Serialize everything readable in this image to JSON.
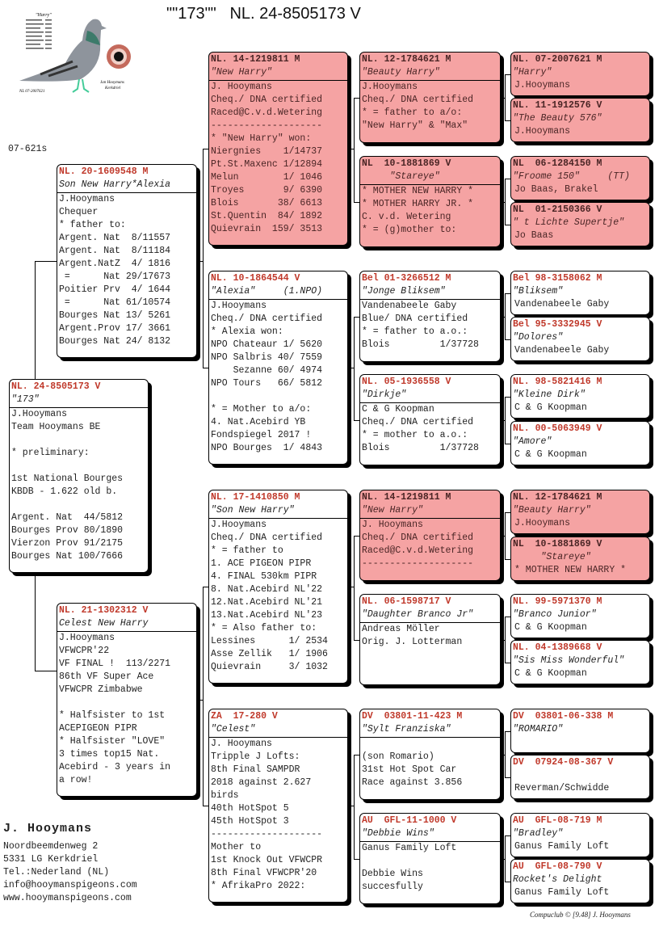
{
  "title": "\"\"173\"\"   NL. 24-8505173 V",
  "code": "07-621s",
  "logo_text": {
    "top": "\"Harry\"",
    "left": "NL 07-2007621",
    "right1": "Jan Hooymans",
    "right2": "Kerkdriel"
  },
  "colors": {
    "pink": "#f5a3a3",
    "id_red": "#c0392b"
  },
  "boxes": [
    {
      "id": "NL. 24-8505173 V",
      "name": "\"173\"",
      "pink": false,
      "lines": [
        "J.Hooymans",
        "Team Hooymans BE",
        "",
        "* preliminary:",
        "",
        "1st National Bourges",
        "KBDB - 1.622 old b.",
        "",
        "Argent. Nat  44/5812",
        "Bourges Prov 80/1890",
        "Vierzon Prov 91/2175",
        "Bourges Nat 100/7666"
      ]
    },
    {
      "id": "NL. 20-1609548 M",
      "name": "Son New Harry*Alexia",
      "pink": false,
      "lines": [
        "J.Hooymans",
        "Chequer",
        "* father to:",
        "Argent. Nat  8/11557",
        "Argent. Nat  8/11184",
        "Argent.NatZ  4/ 1816",
        " =      Nat 29/17673",
        "Poitier Prv  4/ 1644",
        " =      Nat 61/10574",
        "Bourges Nat 13/ 5261",
        "Argent.Prov 17/ 3661",
        "Bourges Nat 24/ 8132"
      ]
    },
    {
      "id": "NL. 21-1302312 V",
      "name": "Celest New Harry",
      "pink": false,
      "lines": [
        "J.Hooymans",
        "VFWCPR'22",
        "VF FINAL !  113/2271",
        "86th VF Super Ace",
        "VFWCPR Zimbabwe",
        "",
        "* Halfsister to 1st",
        "ACEPIGEON PIPR",
        "* Halfsister \"LOVE\"",
        "3 times top15 Nat.",
        "Acebird - 3 years in",
        "a row!"
      ]
    },
    {
      "id": "NL. 14-1219811 M",
      "name": "\"New Harry\"",
      "pink": true,
      "lines": [
        "J. Hooymans",
        "Cheq./ DNA certified",
        "Raced@C.v.d.Wetering",
        "--------------------",
        "* \"New Harry\" won:",
        "Niergnies    1/14737",
        "Pt.St.Maxenc 1/12894",
        "Melun        1/ 1046",
        "Troyes       9/ 6390",
        "Blois       38/ 6613",
        "St.Quentin  84/ 1892",
        "Quievrain  159/ 3513"
      ]
    },
    {
      "id": "NL. 10-1864544 V",
      "name": "\"Alexia\"     (1.NPO)",
      "pink": false,
      "lines": [
        "J.Hooymans",
        "Cheq./ DNA certified",
        "* Alexia won:",
        "NPO Chateaur 1/ 5620",
        "NPO Salbris 40/ 7559",
        "    Sezanne 60/ 4974",
        "NPO Tours   66/ 5812",
        "",
        "* = Mother to a/o:",
        "4. Nat.Acebird YB",
        "Fondspiegel 2017 !",
        "NPO Bourges  1/ 4843"
      ]
    },
    {
      "id": "NL. 17-1410850 M",
      "name": "\"Son New Harry\"",
      "pink": false,
      "lines": [
        "J.Hooymans",
        "Cheq./ DNA certified",
        "* = father to",
        "1. ACE PIGEON PIPR",
        "4. FINAL 530km PIPR",
        "8. Nat.Acebird NL'22",
        "12.Nat.Acebird NL'21",
        "13.Nat.Acebird NL'23",
        "* = Also father to:",
        "Lessines      1/ 2534",
        "Asse Zellik   1/ 1906",
        "Quievrain     3/ 1032"
      ]
    },
    {
      "id": "ZA  17-280 V",
      "name": "\"Celest\"",
      "pink": false,
      "lines": [
        "J. Hooymans",
        "Tripple J Lofts:",
        "8th Final SAMPDR",
        "2018 against 2.627",
        "birds",
        "40th HotSpot 5",
        "45th HotSpot 3",
        "--------------------",
        "Mother to",
        "1st Knock Out VFWCPR",
        "8th Final VFWCPR'20",
        "* AfrikaPro 2022:"
      ]
    },
    {
      "id": "NL. 12-1784621 M",
      "name": "\"Beauty Harry\"",
      "pink": true,
      "lines": [
        "J.Hooymans",
        "Cheq./ DNA certified",
        "* = father to a/o:",
        "\"New Harry\" & \"Max\""
      ]
    },
    {
      "id": "NL  10-1881869 V",
      "name": "     \"Stareye\"",
      "pink": true,
      "lines": [
        "* MOTHER NEW HARRY *",
        "* MOTHER HARRY JR. *",
        "C. v.d. Wetering",
        "* = (g)mother to:"
      ]
    },
    {
      "id": "Bel 01-3266512 M",
      "name": "\"Jonge Bliksem\"",
      "pink": false,
      "lines": [
        "Vandenabeele Gaby",
        "Blue/ DNA certified",
        "* = father to a.o.:",
        "Blois         1/37728"
      ]
    },
    {
      "id": "NL. 05-1936558 V",
      "name": "\"Dirkje\"",
      "pink": false,
      "lines": [
        "C & G Koopman",
        "Cheq./ DNA certified",
        "* = mother to a.o.:",
        "Blois         1/37728"
      ]
    },
    {
      "id": "NL. 14-1219811 M",
      "name": "\"New Harry\"",
      "pink": true,
      "lines": [
        "J. Hooymans",
        "Cheq./ DNA certified",
        "Raced@C.v.d.Wetering",
        "--------------------"
      ]
    },
    {
      "id": "NL. 06-1598717 V",
      "name": "\"Daughter Branco Jr\"",
      "pink": false,
      "lines": [
        "Andreas Möller",
        "Orig. J. Lotterman"
      ]
    },
    {
      "id": "DV  03801-11-423 M",
      "name": "\"Sylt Franziska\"",
      "pink": false,
      "lines": [
        "",
        "(son Romario)",
        "31st Hot Spot Car",
        "Race against 3.856"
      ]
    },
    {
      "id": "AU  GFL-11-1000 V",
      "name": "\"Debbie Wins\"",
      "pink": false,
      "lines": [
        "Ganus Family Loft",
        "",
        "Debbie Wins",
        "succesfully"
      ]
    },
    {
      "id": "NL. 07-2007621 M",
      "name": "\"Harry\"",
      "pink": true,
      "lines": [
        "J.Hooymans"
      ]
    },
    {
      "id": "NL. 11-1912576 V",
      "name": "\"The Beauty 576\"",
      "pink": true,
      "lines": [
        "J.Hooymans"
      ]
    },
    {
      "id": "NL  06-1284150 M",
      "name": "\"Froome 150\"     (TT)",
      "pink": true,
      "lines": [
        "Jo Baas, Brakel"
      ]
    },
    {
      "id": "NL  01-2150366 V",
      "name": "\" t Lichte Supertje\"",
      "pink": true,
      "lines": [
        "Jo Baas"
      ]
    },
    {
      "id": "Bel 98-3158062 M",
      "name": "\"Bliksem\"",
      "pink": false,
      "lines": [
        "Vandenabeele Gaby"
      ]
    },
    {
      "id": "Bel 95-3332945 V",
      "name": "\"Dolores\"",
      "pink": false,
      "lines": [
        "Vandenabeele Gaby"
      ]
    },
    {
      "id": "NL. 98-5821416 M",
      "name": "\"Kleine Dirk\"",
      "pink": false,
      "lines": [
        "C & G Koopman"
      ]
    },
    {
      "id": "NL. 00-5063949 V",
      "name": "\"Amore\"",
      "pink": false,
      "lines": [
        "C & G Koopman"
      ]
    },
    {
      "id": "NL. 12-1784621 M",
      "name": "\"Beauty Harry\"",
      "pink": true,
      "lines": [
        "J.Hooymans"
      ]
    },
    {
      "id": "NL  10-1881869 V",
      "name": "     \"Stareye\"",
      "pink": true,
      "lines": [
        "* MOTHER NEW HARRY *"
      ]
    },
    {
      "id": "NL. 99-5971370 M",
      "name": "\"Branco Junior\"",
      "pink": false,
      "lines": [
        "C & G Koopman"
      ]
    },
    {
      "id": "NL. 04-1389668 V",
      "name": "\"Sis Miss Wonderful\"",
      "pink": false,
      "lines": [
        "C & G Koopman"
      ]
    },
    {
      "id": "DV  03801-06-338 M",
      "name": "\"ROMARIO\"",
      "pink": false,
      "lines": [
        ""
      ]
    },
    {
      "id": "DV  07924-08-367 V",
      "name": "",
      "pink": false,
      "lines": [
        "Reverman/Schwidde"
      ]
    },
    {
      "id": "AU  GFL-08-719 M",
      "name": "\"Bradley\"",
      "pink": false,
      "lines": [
        "Ganus Family Loft"
      ]
    },
    {
      "id": "AU  GFL-08-790 V",
      "name": "Rocket's Delight",
      "pink": false,
      "lines": [
        "Ganus Family Loft"
      ]
    }
  ],
  "breeder": {
    "name": "J. Hooymans",
    "lines": [
      "Noordbeemdenweg 2",
      "5331 LG  Kerkdriel",
      "Tel.:Nederland (NL)",
      "info@hooymanspigeons.com",
      "www.hooymanspigeons.com"
    ]
  },
  "footer": "Compuclub © [9.48]   J. Hooymans"
}
